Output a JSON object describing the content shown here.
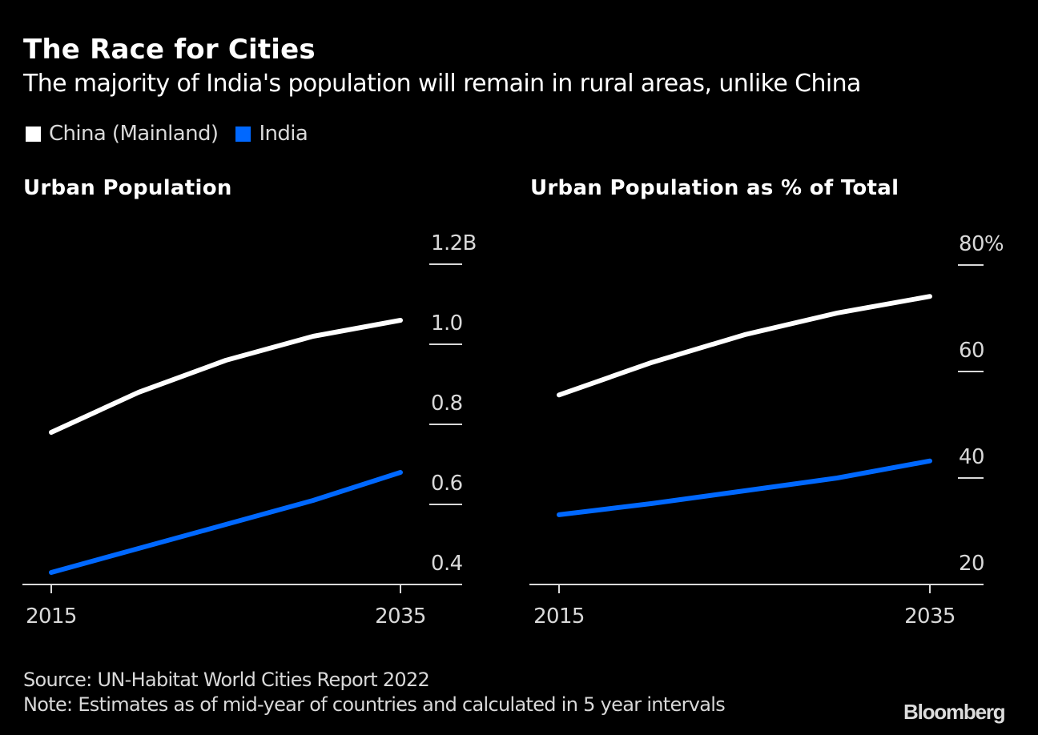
{
  "header": {
    "title": "The Race for Cities",
    "subtitle": "The majority of India's population will remain in rural areas, unlike China"
  },
  "legend": [
    {
      "label": "China (Mainland)",
      "color": "#ffffff"
    },
    {
      "label": "India",
      "color": "#0068ff"
    }
  ],
  "chart_data": [
    {
      "type": "line",
      "title": "Urban Population",
      "xlabel": "",
      "ylabel": "",
      "x": [
        2015,
        2020,
        2025,
        2030,
        2035
      ],
      "x_tick_labels": [
        "2015",
        "2035"
      ],
      "x_ticks": [
        2015,
        2035
      ],
      "y_ticks": [
        0.4,
        0.6,
        0.8,
        1.0,
        1.2
      ],
      "y_tick_labels": [
        "0.4",
        "0.6",
        "0.8",
        "1.0",
        "1.2B"
      ],
      "ylim": [
        0.4,
        1.2
      ],
      "y_axis_side": "right",
      "grid": false,
      "legend_position": "top-left",
      "series": [
        {
          "name": "China (Mainland)",
          "color": "#ffffff",
          "values": [
            0.78,
            0.88,
            0.96,
            1.02,
            1.06
          ]
        },
        {
          "name": "India",
          "color": "#0068ff",
          "values": [
            0.43,
            0.49,
            0.55,
            0.61,
            0.68
          ]
        }
      ]
    },
    {
      "type": "line",
      "title": "Urban Population as % of Total",
      "xlabel": "",
      "ylabel": "",
      "x": [
        2015,
        2020,
        2025,
        2030,
        2035
      ],
      "x_tick_labels": [
        "2015",
        "2035"
      ],
      "x_ticks": [
        2015,
        2035
      ],
      "y_ticks": [
        20,
        40,
        60,
        80
      ],
      "y_tick_labels": [
        "20",
        "40",
        "60",
        "80%"
      ],
      "ylim": [
        20,
        80
      ],
      "y_axis_side": "right",
      "grid": false,
      "legend_position": "top-left",
      "series": [
        {
          "name": "China (Mainland)",
          "color": "#ffffff",
          "values": [
            55.6,
            61.7,
            66.9,
            71.0,
            74.1
          ]
        },
        {
          "name": "India",
          "color": "#0068ff",
          "values": [
            33.1,
            35.2,
            37.6,
            40.0,
            43.2
          ]
        }
      ]
    }
  ],
  "footer": {
    "source": "Source: UN-Habitat World Cities Report 2022",
    "note": "Note: Estimates as of mid-year of countries and calculated in 5 year intervals",
    "logo": "Bloomberg"
  }
}
